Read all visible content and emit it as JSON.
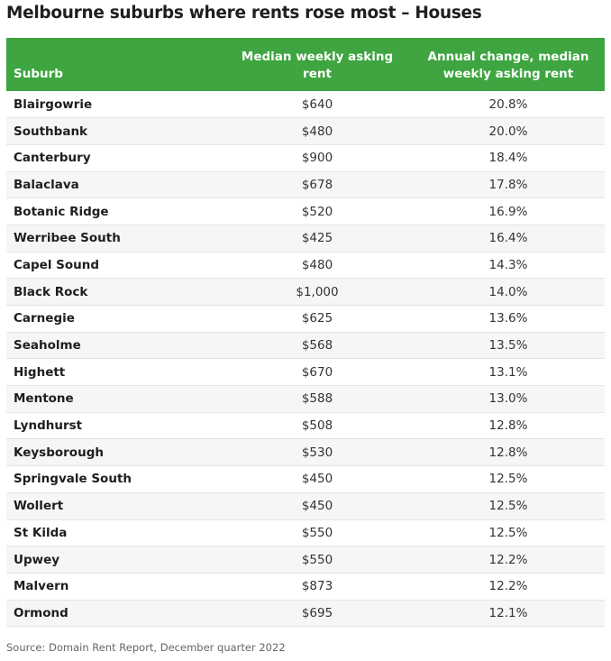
{
  "title": "Melbourne suburbs where rents rose most – Houses",
  "table": {
    "headers": {
      "suburb": "Suburb",
      "rent": "Median weekly asking rent",
      "change": "Annual change, median weekly asking rent"
    },
    "rows": [
      {
        "suburb": "Blairgowrie",
        "rent": "$640",
        "change": "20.8%"
      },
      {
        "suburb": "Southbank",
        "rent": "$480",
        "change": "20.0%"
      },
      {
        "suburb": "Canterbury",
        "rent": "$900",
        "change": "18.4%"
      },
      {
        "suburb": "Balaclava",
        "rent": "$678",
        "change": "17.8%"
      },
      {
        "suburb": "Botanic Ridge",
        "rent": "$520",
        "change": "16.9%"
      },
      {
        "suburb": "Werribee South",
        "rent": "$425",
        "change": "16.4%"
      },
      {
        "suburb": "Capel Sound",
        "rent": "$480",
        "change": "14.3%"
      },
      {
        "suburb": "Black Rock",
        "rent": "$1,000",
        "change": "14.0%"
      },
      {
        "suburb": "Carnegie",
        "rent": "$625",
        "change": "13.6%"
      },
      {
        "suburb": "Seaholme",
        "rent": "$568",
        "change": "13.5%"
      },
      {
        "suburb": "Highett",
        "rent": "$670",
        "change": "13.1%"
      },
      {
        "suburb": "Mentone",
        "rent": "$588",
        "change": "13.0%"
      },
      {
        "suburb": "Lyndhurst",
        "rent": "$508",
        "change": "12.8%"
      },
      {
        "suburb": "Keysborough",
        "rent": "$530",
        "change": "12.8%"
      },
      {
        "suburb": "Springvale South",
        "rent": "$450",
        "change": "12.5%"
      },
      {
        "suburb": "Wollert",
        "rent": "$450",
        "change": "12.5%"
      },
      {
        "suburb": "St Kilda",
        "rent": "$550",
        "change": "12.5%"
      },
      {
        "suburb": "Upwey",
        "rent": "$550",
        "change": "12.2%"
      },
      {
        "suburb": "Malvern",
        "rent": "$873",
        "change": "12.2%"
      },
      {
        "suburb": "Ormond",
        "rent": "$695",
        "change": "12.1%"
      }
    ]
  },
  "source": "Source: Domain Rent Report, December quarter 2022",
  "colors": {
    "header_bg": "#3ea540",
    "header_text": "#ffffff",
    "row_stripe": "#f6f6f6"
  }
}
